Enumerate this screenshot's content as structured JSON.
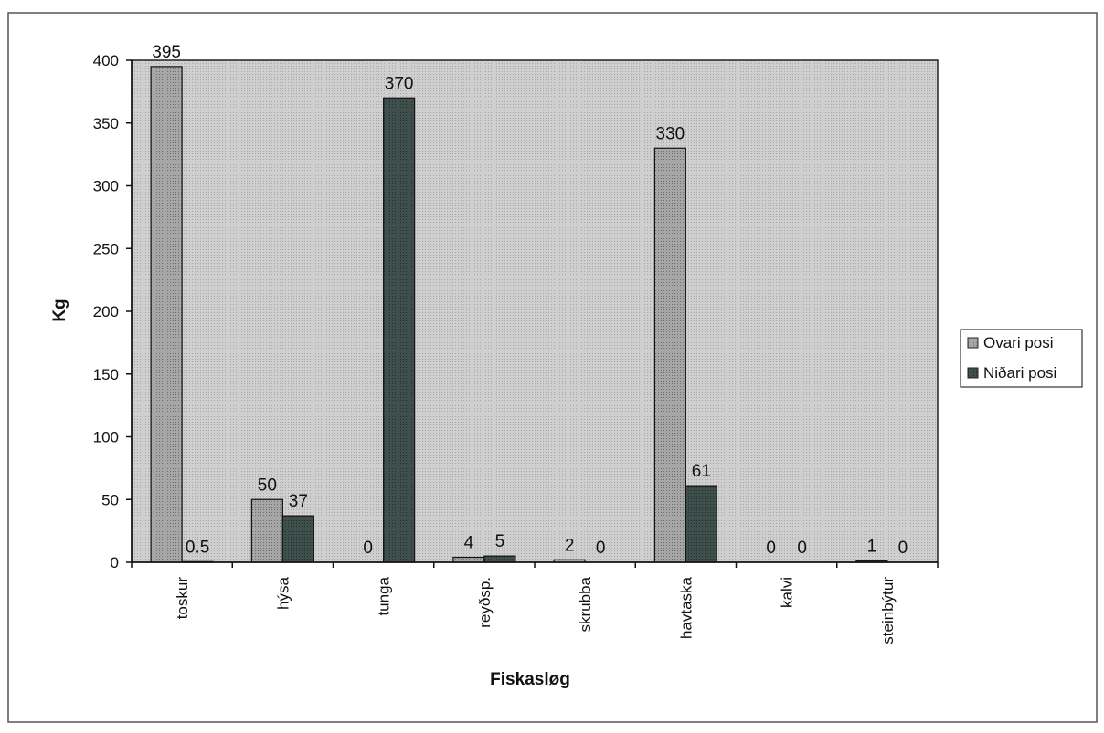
{
  "chart_data": {
    "type": "bar",
    "title": "",
    "xlabel": "Fiskasløg",
    "ylabel": "Kg",
    "ylim": [
      0,
      400
    ],
    "yticks": [
      0,
      50,
      100,
      150,
      200,
      250,
      300,
      350,
      400
    ],
    "categories": [
      "toskur",
      "hýsa",
      "tunga",
      "reyðsp.",
      "skrubba",
      "havtaska",
      "kalvi",
      "steinbýtur"
    ],
    "series": [
      {
        "name": "Ovari posi",
        "values": [
          395,
          50,
          0,
          4,
          2,
          330,
          0,
          1
        ],
        "labels": [
          "395",
          "50",
          "0",
          "4",
          "2",
          "330",
          "0",
          "1"
        ],
        "color": "#9a9a9a"
      },
      {
        "name": "Niðari posi",
        "values": [
          0.5,
          37,
          370,
          5,
          0,
          61,
          0,
          0
        ],
        "labels": [
          "0.5",
          "37",
          "370",
          "5",
          "0",
          "61",
          "0",
          "0"
        ],
        "color": "#3a4a46"
      }
    ],
    "grid": false,
    "legend": "right",
    "plot_background": "#d6d6d6"
  }
}
